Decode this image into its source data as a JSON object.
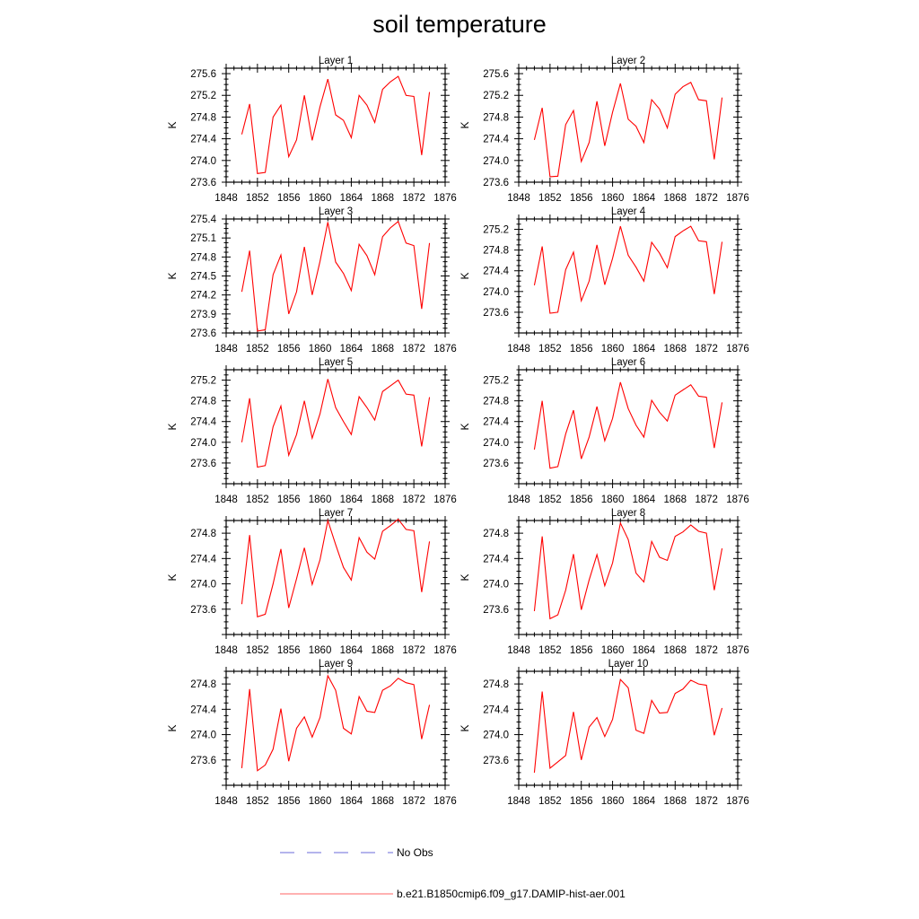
{
  "title": "soil temperature",
  "legend": [
    {
      "label": "No Obs",
      "color": "#6a6ad8",
      "style": "dashed"
    },
    {
      "label": "b.e21.B1850cmip6.f09_g17.DAMIP-hist-aer.001",
      "color": "#ff6666",
      "style": "solid"
    }
  ],
  "chart_data": [
    {
      "type": "line",
      "title": "Layer 1",
      "ylabel": "K",
      "xlim": [
        1848,
        1876
      ],
      "ylim": [
        273.6,
        275.7
      ],
      "xticks": [
        1848,
        1852,
        1856,
        1860,
        1864,
        1868,
        1872,
        1876
      ],
      "yticks": [
        "273.6",
        "274.0",
        "274.4",
        "274.8",
        "275.2",
        "275.6"
      ],
      "x": [
        1850,
        1851,
        1852,
        1853,
        1854,
        1855,
        1856,
        1857,
        1858,
        1859,
        1860,
        1861,
        1862,
        1863,
        1864,
        1865,
        1866,
        1867,
        1868,
        1869,
        1870,
        1871,
        1872,
        1873,
        1874
      ],
      "series": [
        {
          "color": "#ff0000",
          "values": [
            274.48,
            275.04,
            273.76,
            273.78,
            274.8,
            275.02,
            274.07,
            274.38,
            275.2,
            274.37,
            274.99,
            275.5,
            274.84,
            274.74,
            274.42,
            275.2,
            275.02,
            274.7,
            275.31,
            275.45,
            275.55,
            275.2,
            275.18,
            274.1,
            275.26
          ]
        }
      ]
    },
    {
      "type": "line",
      "title": "Layer 2",
      "ylabel": "K",
      "xlim": [
        1848,
        1876
      ],
      "ylim": [
        273.6,
        275.7
      ],
      "xticks": [
        1848,
        1852,
        1856,
        1860,
        1864,
        1868,
        1872,
        1876
      ],
      "yticks": [
        "273.6",
        "274.0",
        "274.4",
        "274.8",
        "275.2",
        "275.6"
      ],
      "x": [
        1850,
        1851,
        1852,
        1853,
        1854,
        1855,
        1856,
        1857,
        1858,
        1859,
        1860,
        1861,
        1862,
        1863,
        1864,
        1865,
        1866,
        1867,
        1868,
        1869,
        1870,
        1871,
        1872,
        1873,
        1874
      ],
      "series": [
        {
          "color": "#ff0000",
          "values": [
            274.38,
            274.97,
            273.7,
            273.71,
            274.66,
            274.92,
            273.98,
            274.33,
            275.09,
            274.27,
            274.89,
            275.42,
            274.76,
            274.63,
            274.33,
            275.12,
            274.95,
            274.6,
            275.22,
            275.36,
            275.44,
            275.12,
            275.1,
            274.02,
            275.16
          ]
        }
      ]
    },
    {
      "type": "line",
      "title": "Layer 3",
      "ylabel": "K",
      "xlim": [
        1848,
        1876
      ],
      "ylim": [
        273.6,
        275.4
      ],
      "xticks": [
        1848,
        1852,
        1856,
        1860,
        1864,
        1868,
        1872,
        1876
      ],
      "yticks": [
        "273.6",
        "273.9",
        "274.2",
        "274.5",
        "274.8",
        "275.1",
        "275.4"
      ],
      "x": [
        1850,
        1851,
        1852,
        1853,
        1854,
        1855,
        1856,
        1857,
        1858,
        1859,
        1860,
        1861,
        1862,
        1863,
        1864,
        1865,
        1866,
        1867,
        1868,
        1869,
        1870,
        1871,
        1872,
        1873,
        1874
      ],
      "series": [
        {
          "color": "#ff0000",
          "values": [
            274.25,
            274.9,
            273.63,
            273.65,
            274.52,
            274.83,
            273.9,
            274.25,
            274.96,
            274.2,
            274.73,
            275.35,
            274.72,
            274.54,
            274.27,
            275.0,
            274.82,
            274.52,
            275.12,
            275.26,
            275.36,
            275.02,
            274.98,
            273.98,
            275.02
          ]
        }
      ]
    },
    {
      "type": "line",
      "title": "Layer 4",
      "ylabel": "K",
      "xlim": [
        1848,
        1876
      ],
      "ylim": [
        273.2,
        275.4
      ],
      "xticks": [
        1848,
        1852,
        1856,
        1860,
        1864,
        1868,
        1872,
        1876
      ],
      "yticks": [
        "273.6",
        "274.0",
        "274.4",
        "274.8",
        "275.2"
      ],
      "x": [
        1850,
        1851,
        1852,
        1853,
        1854,
        1855,
        1856,
        1857,
        1858,
        1859,
        1860,
        1861,
        1862,
        1863,
        1864,
        1865,
        1866,
        1867,
        1868,
        1869,
        1870,
        1871,
        1872,
        1873,
        1874
      ],
      "series": [
        {
          "color": "#ff0000",
          "values": [
            274.12,
            274.87,
            273.58,
            273.6,
            274.42,
            274.76,
            273.82,
            274.2,
            274.9,
            274.13,
            274.64,
            275.26,
            274.7,
            274.47,
            274.2,
            274.95,
            274.74,
            274.46,
            275.06,
            275.17,
            275.26,
            274.98,
            274.96,
            273.95,
            274.96
          ]
        }
      ]
    },
    {
      "type": "line",
      "title": "Layer 5",
      "ylabel": "K",
      "xlim": [
        1848,
        1876
      ],
      "ylim": [
        273.2,
        275.4
      ],
      "xticks": [
        1848,
        1852,
        1856,
        1860,
        1864,
        1868,
        1872,
        1876
      ],
      "yticks": [
        "273.6",
        "274.0",
        "274.4",
        "274.8",
        "275.2"
      ],
      "x": [
        1850,
        1851,
        1852,
        1853,
        1854,
        1855,
        1856,
        1857,
        1858,
        1859,
        1860,
        1861,
        1862,
        1863,
        1864,
        1865,
        1866,
        1867,
        1868,
        1869,
        1870,
        1871,
        1872,
        1873,
        1874
      ],
      "series": [
        {
          "color": "#ff0000",
          "values": [
            274.0,
            274.85,
            273.52,
            273.55,
            274.3,
            274.7,
            273.75,
            274.15,
            274.8,
            274.08,
            274.55,
            275.22,
            274.67,
            274.4,
            274.15,
            274.88,
            274.67,
            274.43,
            274.98,
            275.09,
            275.2,
            274.93,
            274.91,
            273.92,
            274.87
          ]
        }
      ]
    },
    {
      "type": "line",
      "title": "Layer 6",
      "ylabel": "K",
      "xlim": [
        1848,
        1876
      ],
      "ylim": [
        273.2,
        275.4
      ],
      "xticks": [
        1848,
        1852,
        1856,
        1860,
        1864,
        1868,
        1872,
        1876
      ],
      "yticks": [
        "273.6",
        "274.0",
        "274.4",
        "274.8",
        "275.2"
      ],
      "x": [
        1850,
        1851,
        1852,
        1853,
        1854,
        1855,
        1856,
        1857,
        1858,
        1859,
        1860,
        1861,
        1862,
        1863,
        1864,
        1865,
        1866,
        1867,
        1868,
        1869,
        1870,
        1871,
        1872,
        1873,
        1874
      ],
      "series": [
        {
          "color": "#ff0000",
          "values": [
            273.86,
            274.8,
            273.5,
            273.53,
            274.16,
            274.62,
            273.68,
            274.1,
            274.69,
            274.03,
            274.46,
            275.16,
            274.65,
            274.33,
            274.1,
            274.81,
            274.58,
            274.41,
            274.91,
            275.01,
            275.11,
            274.89,
            274.87,
            273.89,
            274.77
          ]
        }
      ]
    },
    {
      "type": "line",
      "title": "Layer 7",
      "ylabel": "K",
      "xlim": [
        1848,
        1876
      ],
      "ylim": [
        273.2,
        275.0
      ],
      "xticks": [
        1848,
        1852,
        1856,
        1860,
        1864,
        1868,
        1872,
        1876
      ],
      "yticks": [
        "273.6",
        "274.0",
        "274.4",
        "274.8"
      ],
      "x": [
        1850,
        1851,
        1852,
        1853,
        1854,
        1855,
        1856,
        1857,
        1858,
        1859,
        1860,
        1861,
        1862,
        1863,
        1864,
        1865,
        1866,
        1867,
        1868,
        1869,
        1870,
        1871,
        1872,
        1873,
        1874
      ],
      "series": [
        {
          "color": "#ff0000",
          "values": [
            273.68,
            274.77,
            273.48,
            273.52,
            274.0,
            274.55,
            273.62,
            274.08,
            274.57,
            273.99,
            274.38,
            275.0,
            274.62,
            274.26,
            274.06,
            274.73,
            274.5,
            274.39,
            274.83,
            274.92,
            275.02,
            274.86,
            274.84,
            273.87,
            274.67
          ]
        }
      ]
    },
    {
      "type": "line",
      "title": "Layer 8",
      "ylabel": "K",
      "xlim": [
        1848,
        1876
      ],
      "ylim": [
        273.2,
        275.0
      ],
      "xticks": [
        1848,
        1852,
        1856,
        1860,
        1864,
        1868,
        1872,
        1876
      ],
      "yticks": [
        "273.6",
        "274.0",
        "274.4",
        "274.8"
      ],
      "x": [
        1850,
        1851,
        1852,
        1853,
        1854,
        1855,
        1856,
        1857,
        1858,
        1859,
        1860,
        1861,
        1862,
        1863,
        1864,
        1865,
        1866,
        1867,
        1868,
        1869,
        1870,
        1871,
        1872,
        1873,
        1874
      ],
      "series": [
        {
          "color": "#ff0000",
          "values": [
            273.57,
            274.75,
            273.45,
            273.51,
            273.9,
            274.47,
            273.59,
            274.06,
            274.46,
            273.97,
            274.33,
            274.96,
            274.7,
            274.17,
            274.03,
            274.67,
            274.42,
            274.37,
            274.75,
            274.82,
            274.93,
            274.83,
            274.8,
            273.9,
            274.56
          ]
        }
      ]
    },
    {
      "type": "line",
      "title": "Layer 9",
      "ylabel": "K",
      "xlim": [
        1848,
        1876
      ],
      "ylim": [
        273.2,
        275.0
      ],
      "xticks": [
        1848,
        1852,
        1856,
        1860,
        1864,
        1868,
        1872,
        1876
      ],
      "yticks": [
        "273.6",
        "274.0",
        "274.4",
        "274.8"
      ],
      "x": [
        1850,
        1851,
        1852,
        1853,
        1854,
        1855,
        1856,
        1857,
        1858,
        1859,
        1860,
        1861,
        1862,
        1863,
        1864,
        1865,
        1866,
        1867,
        1868,
        1869,
        1870,
        1871,
        1872,
        1873,
        1874
      ],
      "series": [
        {
          "color": "#ff0000",
          "values": [
            273.47,
            274.72,
            273.43,
            273.52,
            273.77,
            274.41,
            273.58,
            274.1,
            274.28,
            273.96,
            274.27,
            274.93,
            274.7,
            274.1,
            274.01,
            274.6,
            274.37,
            274.35,
            274.7,
            274.77,
            274.89,
            274.82,
            274.79,
            273.93,
            274.47
          ]
        }
      ]
    },
    {
      "type": "line",
      "title": "Layer 10",
      "ylabel": "K",
      "xlim": [
        1848,
        1876
      ],
      "ylim": [
        273.2,
        275.0
      ],
      "xticks": [
        1848,
        1852,
        1856,
        1860,
        1864,
        1868,
        1872,
        1876
      ],
      "yticks": [
        "273.6",
        "274.0",
        "274.4",
        "274.8"
      ],
      "x": [
        1850,
        1851,
        1852,
        1853,
        1854,
        1855,
        1856,
        1857,
        1858,
        1859,
        1860,
        1861,
        1862,
        1863,
        1864,
        1865,
        1866,
        1867,
        1868,
        1869,
        1870,
        1871,
        1872,
        1873,
        1874
      ],
      "series": [
        {
          "color": "#ff0000",
          "values": [
            273.4,
            274.68,
            273.47,
            273.57,
            273.67,
            274.36,
            273.6,
            274.12,
            274.27,
            273.97,
            274.24,
            274.87,
            274.74,
            274.07,
            274.02,
            274.54,
            274.34,
            274.35,
            274.65,
            274.72,
            274.86,
            274.8,
            274.78,
            273.99,
            274.42
          ]
        }
      ]
    }
  ]
}
